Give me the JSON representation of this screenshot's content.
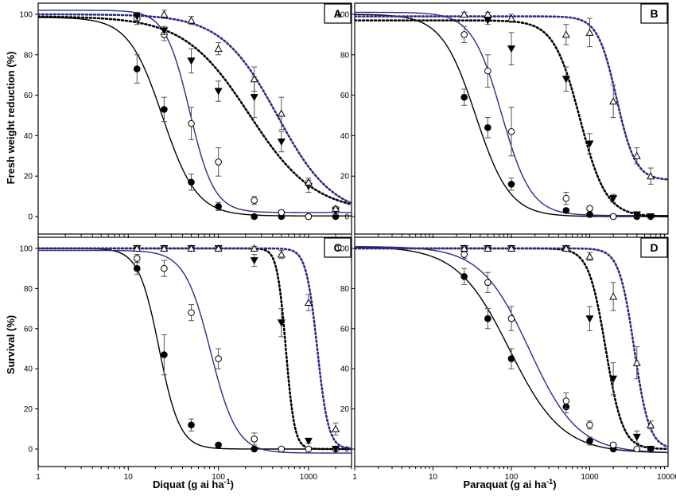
{
  "chart_data": [
    {
      "panel": "A",
      "type": "scatter",
      "xscale": "log",
      "xlim": [
        1,
        3000
      ],
      "ylim": [
        0,
        100
      ],
      "yticks": [
        0,
        20,
        40,
        60,
        80,
        100
      ],
      "xticks": [
        1,
        10,
        100,
        1000
      ],
      "xlabel": "",
      "ylabel": "Fresh weight reduction (%)",
      "series": [
        {
          "marker": "filled-circle",
          "curve": "solid",
          "color": "#000000",
          "points": [
            [
              12.5,
              73
            ],
            [
              25,
              53
            ],
            [
              50,
              17
            ],
            [
              100,
              5
            ],
            [
              250,
              0
            ],
            [
              500,
              0
            ],
            [
              1000,
              0
            ],
            [
              2000,
              0
            ]
          ],
          "errors": [
            7,
            6,
            4,
            2,
            1,
            1,
            1,
            1
          ],
          "fit": {
            "top": 98.5,
            "bottom": 0.3,
            "ed50": 24,
            "slope": 2.3
          }
        },
        {
          "marker": "open-circle",
          "curve": "solid",
          "color": "#2b2b8c",
          "points": [
            [
              12.5,
              98
            ],
            [
              25,
              90
            ],
            [
              50,
              46
            ],
            [
              100,
              27
            ],
            [
              250,
              8
            ],
            [
              500,
              2
            ],
            [
              1000,
              0
            ]
          ],
          "errors": [
            3,
            3,
            8,
            7,
            2,
            1,
            1
          ],
          "fit": {
            "top": 102,
            "bottom": 2,
            "ed50": 48,
            "slope": 3.2
          }
        },
        {
          "marker": "filled-triangle-down",
          "curve": "dotted",
          "color": "#000000",
          "points": [
            [
              12.5,
              99
            ],
            [
              25,
              92
            ],
            [
              50,
              77
            ],
            [
              100,
              62
            ],
            [
              250,
              59
            ],
            [
              500,
              37
            ],
            [
              1000,
              15
            ],
            [
              2000,
              3
            ]
          ],
          "errors": [
            2,
            2,
            6,
            5,
            10,
            5,
            3,
            2
          ],
          "fit": {
            "top": 99,
            "bottom": 2,
            "ed50": 220,
            "slope": 1.2
          }
        },
        {
          "marker": "open-triangle-up",
          "curve": "dotted",
          "color": "#2b2b8c",
          "points": [
            [
              25,
              100
            ],
            [
              50,
              97
            ],
            [
              100,
              83
            ],
            [
              250,
              68
            ],
            [
              500,
              51
            ],
            [
              1000,
              17
            ],
            [
              2000,
              4
            ]
          ],
          "errors": [
            2,
            2,
            3,
            6,
            8,
            2,
            1
          ],
          "fit": {
            "top": 100,
            "bottom": 0,
            "ed50": 450,
            "slope": 1.4
          }
        }
      ]
    },
    {
      "panel": "B",
      "type": "scatter",
      "xscale": "log",
      "xlim": [
        1,
        10000
      ],
      "ylim": [
        0,
        100
      ],
      "yticks": [
        0,
        20,
        40,
        60,
        80,
        100
      ],
      "xticks": [
        1,
        10,
        100,
        1000,
        10000
      ],
      "xlabel": "",
      "ylabel": "",
      "series": [
        {
          "marker": "filled-circle",
          "curve": "solid",
          "color": "#000000",
          "points": [
            [
              25,
              59
            ],
            [
              50,
              44
            ],
            [
              100,
              16
            ],
            [
              500,
              3
            ],
            [
              1000,
              1
            ],
            [
              2000,
              0
            ],
            [
              4000,
              0
            ],
            [
              6000,
              0
            ]
          ],
          "errors": [
            4,
            5,
            3,
            1,
            1,
            1,
            1,
            1
          ],
          "fit": {
            "top": 100,
            "bottom": 0,
            "ed50": 35,
            "slope": 2.0
          }
        },
        {
          "marker": "open-circle",
          "curve": "solid",
          "color": "#2b2b8c",
          "points": [
            [
              25,
              90
            ],
            [
              50,
              72
            ],
            [
              100,
              42
            ],
            [
              500,
              9
            ],
            [
              1000,
              4
            ],
            [
              2000,
              0
            ]
          ],
          "errors": [
            4,
            8,
            12,
            3,
            1,
            1
          ],
          "fit": {
            "top": 101,
            "bottom": 0.5,
            "ed50": 75,
            "slope": 2.3
          }
        },
        {
          "marker": "filled-triangle-down",
          "curve": "dotted",
          "color": "#000000",
          "points": [
            [
              50,
              97
            ],
            [
              100,
              83
            ],
            [
              500,
              68
            ],
            [
              1000,
              36
            ],
            [
              2000,
              9
            ],
            [
              4000,
              1
            ],
            [
              6000,
              0
            ]
          ],
          "errors": [
            2,
            8,
            6,
            5,
            2,
            1,
            1
          ],
          "fit": {
            "top": 97,
            "bottom": 0,
            "ed50": 750,
            "slope": 2.6
          }
        },
        {
          "marker": "open-triangle-up",
          "curve": "dotted",
          "color": "#2b2b8c",
          "points": [
            [
              25,
              100
            ],
            [
              50,
              100
            ],
            [
              100,
              98
            ],
            [
              500,
              90
            ],
            [
              1000,
              91
            ],
            [
              2000,
              57
            ],
            [
              4000,
              30
            ],
            [
              6000,
              20
            ]
          ],
          "errors": [
            1,
            1,
            2,
            5,
            7,
            8,
            4,
            4
          ],
          "fit": {
            "top": 99,
            "bottom": 18,
            "ed50": 2200,
            "slope": 3.6
          }
        }
      ]
    },
    {
      "panel": "C",
      "type": "scatter",
      "xscale": "log",
      "xlim": [
        1,
        3000
      ],
      "ylim": [
        0,
        100
      ],
      "yticks": [
        0,
        20,
        40,
        60,
        80,
        100
      ],
      "xticks": [
        1,
        10,
        100,
        1000
      ],
      "xlabel": "Diquat (g ai ha-1)",
      "ylabel": "Survival (%)",
      "series": [
        {
          "marker": "filled-circle",
          "curve": "solid",
          "color": "#000000",
          "points": [
            [
              12.5,
              90
            ],
            [
              25,
              47
            ],
            [
              50,
              12
            ],
            [
              100,
              2
            ],
            [
              250,
              0
            ],
            [
              2000,
              0
            ]
          ],
          "errors": [
            3,
            10,
            3,
            1,
            1,
            1
          ],
          "fit": {
            "top": 100,
            "bottom": 0,
            "ed50": 22,
            "slope": 3.8
          }
        },
        {
          "marker": "open-circle",
          "curve": "solid",
          "color": "#2b2b8c",
          "points": [
            [
              12.5,
              95
            ],
            [
              25,
              90
            ],
            [
              50,
              68
            ],
            [
              100,
              45
            ],
            [
              250,
              5
            ],
            [
              500,
              0
            ],
            [
              1000,
              0
            ],
            [
              2000,
              0
            ]
          ],
          "errors": [
            2,
            4,
            4,
            5,
            3,
            1,
            1,
            1
          ],
          "fit": {
            "top": 99,
            "bottom": -2,
            "ed50": 82,
            "slope": 3.0
          }
        },
        {
          "marker": "filled-triangle-down",
          "curve": "dotted",
          "color": "#000000",
          "points": [
            [
              12.5,
              100
            ],
            [
              25,
              100
            ],
            [
              50,
              100
            ],
            [
              100,
              100
            ],
            [
              250,
              94
            ],
            [
              500,
              63
            ],
            [
              1000,
              4
            ],
            [
              2000,
              0
            ]
          ],
          "errors": [
            1,
            1,
            1,
            1,
            3,
            7,
            1,
            1
          ],
          "fit": {
            "top": 100,
            "bottom": 0,
            "ed50": 560,
            "slope": 9
          }
        },
        {
          "marker": "open-triangle-up",
          "curve": "dotted",
          "color": "#2b2b8c",
          "points": [
            [
              12.5,
              100
            ],
            [
              25,
              100
            ],
            [
              50,
              100
            ],
            [
              100,
              100
            ],
            [
              250,
              100
            ],
            [
              500,
              97
            ],
            [
              1000,
              73
            ],
            [
              2000,
              10
            ]
          ],
          "errors": [
            1,
            1,
            1,
            1,
            1,
            2,
            4,
            3
          ],
          "fit": {
            "top": 100,
            "bottom": 0,
            "ed50": 1250,
            "slope": 7
          }
        }
      ]
    },
    {
      "panel": "D",
      "type": "scatter",
      "xscale": "log",
      "xlim": [
        1,
        10000
      ],
      "ylim": [
        0,
        100
      ],
      "yticks": [
        0,
        20,
        40,
        60,
        80,
        100
      ],
      "xticks": [
        1,
        10,
        100,
        1000,
        10000
      ],
      "xlabel": "Paraquat (g ai ha-1)",
      "ylabel": "",
      "series": [
        {
          "marker": "filled-circle",
          "curve": "solid",
          "color": "#000000",
          "points": [
            [
              25,
              86
            ],
            [
              50,
              65
            ],
            [
              100,
              45
            ],
            [
              500,
              21
            ],
            [
              1000,
              4
            ],
            [
              2000,
              0
            ],
            [
              6000,
              0
            ]
          ],
          "errors": [
            4,
            5,
            5,
            3,
            2,
            1,
            1
          ],
          "fit": {
            "top": 101,
            "bottom": -2,
            "ed50": 95,
            "slope": 1.3
          }
        },
        {
          "marker": "open-circle",
          "curve": "solid",
          "color": "#2b2b8c",
          "points": [
            [
              25,
              97
            ],
            [
              50,
              83
            ],
            [
              100,
              65
            ],
            [
              500,
              24
            ],
            [
              1000,
              12
            ],
            [
              2000,
              2
            ],
            [
              4000,
              0
            ]
          ],
          "errors": [
            2,
            5,
            6,
            4,
            2,
            1,
            1
          ],
          "fit": {
            "top": 101,
            "bottom": -2,
            "ed50": 170,
            "slope": 1.4
          }
        },
        {
          "marker": "filled-triangle-down",
          "curve": "dotted",
          "color": "#000000",
          "points": [
            [
              25,
              100
            ],
            [
              50,
              100
            ],
            [
              100,
              100
            ],
            [
              500,
              100
            ],
            [
              1000,
              65
            ],
            [
              2000,
              35
            ],
            [
              4000,
              6
            ],
            [
              6000,
              0
            ]
          ],
          "errors": [
            1,
            1,
            1,
            1,
            6,
            8,
            3,
            1
          ],
          "fit": {
            "top": 100,
            "bottom": 0,
            "ed50": 1600,
            "slope": 4
          }
        },
        {
          "marker": "open-triangle-up",
          "curve": "dotted",
          "color": "#2b2b8c",
          "points": [
            [
              25,
              100
            ],
            [
              50,
              100
            ],
            [
              100,
              100
            ],
            [
              500,
              100
            ],
            [
              1000,
              96
            ],
            [
              2000,
              76
            ],
            [
              4000,
              43
            ],
            [
              6000,
              12
            ]
          ],
          "errors": [
            1,
            1,
            1,
            1,
            2,
            7,
            8,
            2
          ],
          "fit": {
            "top": 100,
            "bottom": 0,
            "ed50": 3700,
            "slope": 4.5
          }
        }
      ]
    }
  ],
  "labels": {
    "ylabel_top": "Fresh weight reduction (%)",
    "ylabel_bottom": "Survival (%)",
    "xlabel_left": "Diquat (g ai ha",
    "xlabel_left_sup": "-1",
    "xlabel_left_close": ")",
    "xlabel_right": "Paraquat (g ai ha",
    "xlabel_right_sup": "-1",
    "xlabel_right_close": ")"
  },
  "colors": {
    "black": "#000000",
    "blue": "#2b2b8c",
    "axis": "#000000"
  }
}
